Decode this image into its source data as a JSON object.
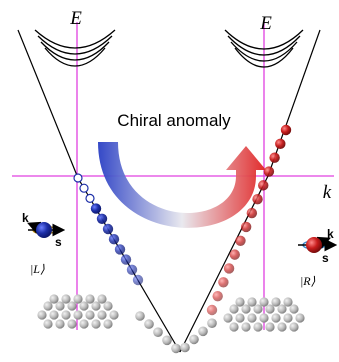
{
  "diagram": {
    "axis_energy_left": "E",
    "axis_energy_right": "E",
    "axis_momentum": "k",
    "title": "Chiral anomaly",
    "left_state": {
      "ket": "|L⟩",
      "k_label": "k",
      "s_label": "s"
    },
    "right_state": {
      "ket": "|R⟩",
      "k_label": "k",
      "s_label": "s"
    }
  },
  "colors": {
    "axis": "#e040e0",
    "left_chirality": "#1d2fa8",
    "right_chirality": "#c81c1c",
    "filled_sea": "#b8b8b8",
    "cone_line": "#000000",
    "arrow_start": "#2a3fc4",
    "arrow_end": "#e02020"
  }
}
